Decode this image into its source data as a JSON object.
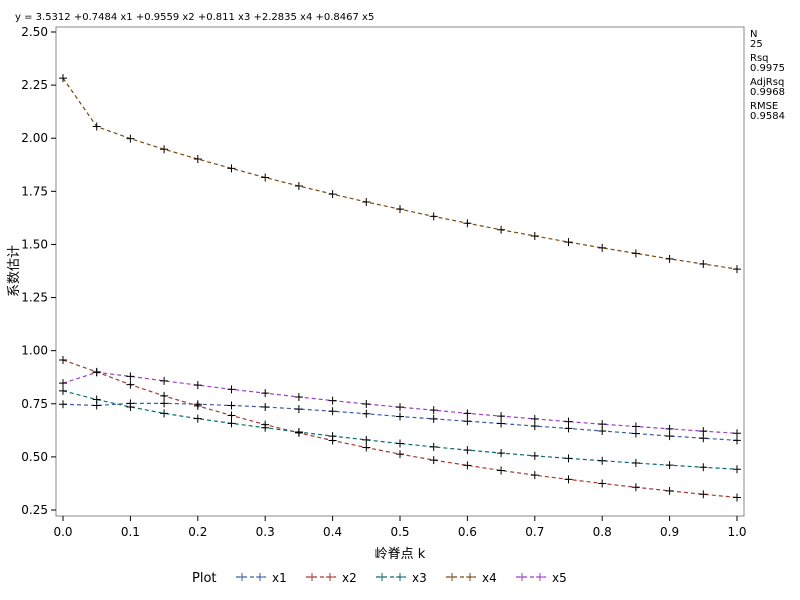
{
  "equation": "y = 3.5312 +0.7484 x1 +0.9559 x2 +0.811 x3 +2.2835 x4 +0.8467 x5",
  "stats": [
    {
      "label": "N",
      "value": "25"
    },
    {
      "label": "Rsq",
      "value": "0.9975"
    },
    {
      "label": "AdjRsq",
      "value": "0.9968"
    },
    {
      "label": "RMSE",
      "value": "0.9584"
    }
  ],
  "chart_data": {
    "type": "line",
    "xlabel": "岭脊点 k",
    "ylabel": "系数估计",
    "xlim": [
      0.0,
      1.0
    ],
    "ylim": [
      0.25,
      2.5
    ],
    "xticks": [
      0.0,
      0.1,
      0.2,
      0.3,
      0.4,
      0.5,
      0.6,
      0.7,
      0.8,
      0.9,
      1.0
    ],
    "xtick_labels": [
      "0.0",
      "0.1",
      "0.2",
      "0.3",
      "0.4",
      "0.5",
      "0.6",
      "0.7",
      "0.8",
      "0.9",
      "1.0"
    ],
    "yticks": [
      0.25,
      0.5,
      0.75,
      1.0,
      1.25,
      1.5,
      1.75,
      2.0,
      2.25,
      2.5
    ],
    "ytick_labels": [
      "0.25",
      "0.50",
      "0.75",
      "1.00",
      "1.25",
      "1.50",
      "1.75",
      "2.00",
      "2.25",
      "2.50"
    ],
    "grid": false,
    "legend_title": "Plot",
    "legend_position": "bottom",
    "line_style": "dashed",
    "marker": "plus",
    "x": [
      0.0,
      0.05,
      0.1,
      0.15,
      0.2,
      0.25,
      0.3,
      0.35,
      0.4,
      0.45,
      0.5,
      0.55,
      0.6,
      0.65,
      0.7,
      0.75,
      0.8,
      0.85,
      0.9,
      0.95,
      1.0
    ],
    "series": [
      {
        "name": "x1",
        "color": "#3d5da6",
        "values": [
          0.748,
          0.742,
          0.752,
          0.752,
          0.748,
          0.742,
          0.735,
          0.725,
          0.715,
          0.703,
          0.69,
          0.679,
          0.668,
          0.657,
          0.645,
          0.634,
          0.622,
          0.61,
          0.598,
          0.588,
          0.578
        ]
      },
      {
        "name": "x2",
        "color": "#a23a33",
        "values": [
          0.956,
          0.9,
          0.84,
          0.787,
          0.74,
          0.695,
          0.652,
          0.613,
          0.577,
          0.544,
          0.513,
          0.485,
          0.46,
          0.436,
          0.414,
          0.394,
          0.375,
          0.357,
          0.34,
          0.324,
          0.309
        ]
      },
      {
        "name": "x3",
        "color": "#0e6b6b",
        "values": [
          0.811,
          0.77,
          0.735,
          0.705,
          0.68,
          0.658,
          0.637,
          0.617,
          0.598,
          0.58,
          0.563,
          0.547,
          0.532,
          0.518,
          0.505,
          0.493,
          0.482,
          0.471,
          0.461,
          0.451,
          0.442
        ]
      },
      {
        "name": "x4",
        "color": "#7a4a12",
        "values": [
          2.283,
          2.055,
          1.998,
          1.948,
          1.902,
          1.858,
          1.815,
          1.775,
          1.737,
          1.7,
          1.666,
          1.632,
          1.6,
          1.569,
          1.54,
          1.511,
          1.484,
          1.458,
          1.432,
          1.408,
          1.384
        ]
      },
      {
        "name": "x5",
        "color": "#9b3fc6",
        "values": [
          0.847,
          0.898,
          0.879,
          0.858,
          0.838,
          0.818,
          0.8,
          0.782,
          0.765,
          0.749,
          0.734,
          0.72,
          0.705,
          0.692,
          0.679,
          0.666,
          0.654,
          0.643,
          0.632,
          0.621,
          0.611
        ]
      }
    ]
  }
}
